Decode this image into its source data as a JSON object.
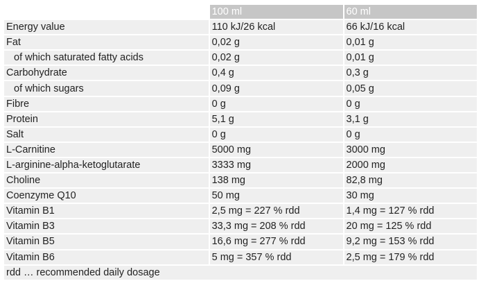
{
  "table": {
    "header": [
      "100 ml",
      "60 ml"
    ],
    "rows": [
      [
        "Energy value",
        "110 kJ/26 kcal",
        "66 kJ/16 kcal"
      ],
      [
        "Fat",
        "0,02 g",
        "0,01 g"
      ],
      [
        "of which saturated fatty acids",
        "0,02 g",
        "0,01 g"
      ],
      [
        "Carbohydrate",
        "0,4 g",
        "0,3 g"
      ],
      [
        "of which sugars",
        "0,09 g",
        "0,05 g"
      ],
      [
        "Fibre",
        "0 g",
        "0 g"
      ],
      [
        "Protein",
        "5,1 g",
        "3,1 g"
      ],
      [
        "Salt",
        "0 g",
        "0 g"
      ],
      [
        "L-Carnitine",
        "5000 mg",
        "3000 mg"
      ],
      [
        "L-arginine-alpha-ketoglutarate",
        "3333 mg",
        "2000 mg"
      ],
      [
        "Choline",
        "138 mg",
        "82,8 mg"
      ],
      [
        "Coenzyme Q10",
        "50 mg",
        "30 mg"
      ],
      [
        "Vitamin B1",
        "2,5 mg = 227 % rdd",
        "1,4 mg = 127 % rdd"
      ],
      [
        "Vitamin B3",
        "33,3 mg = 208 % rdd",
        "20 mg = 125 % rdd"
      ],
      [
        "Vitamin B5",
        "16,6 mg = 277 % rdd",
        "9,2 mg = 153 % rdd"
      ],
      [
        "Vitamin B6",
        "5 mg = 357 % rdd",
        "2,5 mg = 179 % rdd"
      ]
    ],
    "footnote": "rdd … recommended daily dosage"
  }
}
